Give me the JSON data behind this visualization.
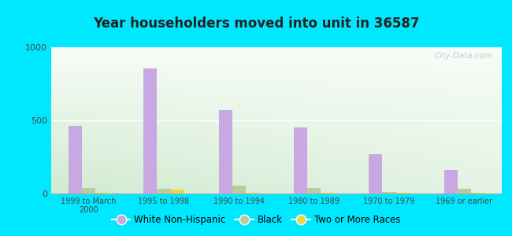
{
  "title": "Year householders moved into unit in 36587",
  "categories": [
    "1999 to March\n2000",
    "1995 to 1998",
    "1990 to 1994",
    "1980 to 1989",
    "1970 to 1979",
    "1969 or earlier"
  ],
  "white_non_hispanic": [
    460,
    855,
    570,
    450,
    270,
    160
  ],
  "black": [
    35,
    30,
    55,
    38,
    12,
    30
  ],
  "two_or_more": [
    8,
    28,
    5,
    5,
    5,
    5
  ],
  "bar_width": 0.18,
  "ylim": [
    0,
    1000
  ],
  "yticks": [
    0,
    500,
    1000
  ],
  "color_white": "#c8a8e0",
  "color_black": "#b8cca0",
  "color_two": "#e8d840",
  "bg_outer": "#00e8ff",
  "bg_chart_top": "#f5fbf5",
  "bg_chart_bottom": "#c8e8c8",
  "watermark": "City-Data.com",
  "legend_labels": [
    "White Non-Hispanic",
    "Black",
    "Two or More Races"
  ]
}
